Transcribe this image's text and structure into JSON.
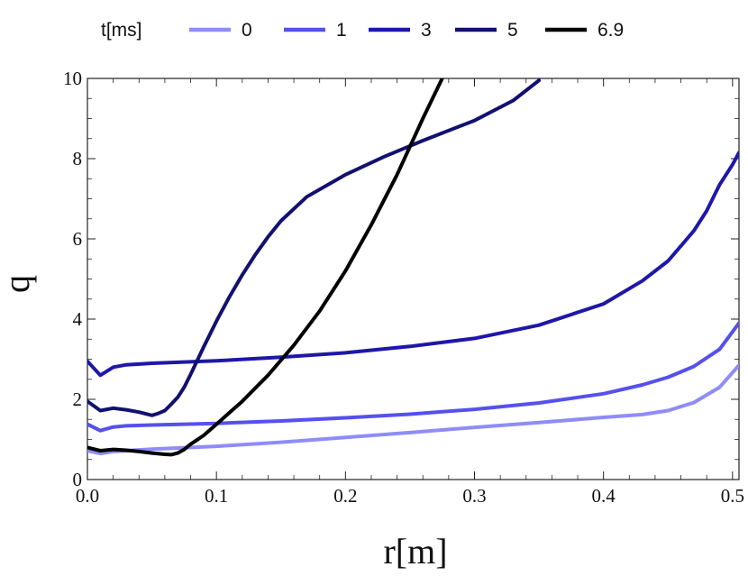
{
  "chart_data": {
    "type": "line",
    "title": "",
    "xlabel": "r[m]",
    "ylabel": "q",
    "xlim": [
      0,
      0.505
    ],
    "ylim": [
      0,
      10
    ],
    "xticks": [
      "0.0",
      "0.1",
      "0.2",
      "0.3",
      "0.4",
      "0.5"
    ],
    "yticks": [
      "0",
      "2",
      "4",
      "6",
      "8",
      "10"
    ],
    "legend_title": "t[ms]",
    "legend_position": "top",
    "series": [
      {
        "name": "0",
        "color": "#8f8cf8",
        "x": [
          0.0,
          0.01,
          0.02,
          0.05,
          0.1,
          0.15,
          0.2,
          0.25,
          0.3,
          0.35,
          0.4,
          0.43,
          0.45,
          0.47,
          0.49,
          0.505
        ],
        "y": [
          0.72,
          0.65,
          0.7,
          0.76,
          0.83,
          0.93,
          1.05,
          1.17,
          1.3,
          1.42,
          1.55,
          1.62,
          1.72,
          1.92,
          2.3,
          2.85
        ]
      },
      {
        "name": "1",
        "color": "#5550ee",
        "x": [
          0.0,
          0.01,
          0.02,
          0.03,
          0.05,
          0.1,
          0.15,
          0.2,
          0.25,
          0.3,
          0.35,
          0.4,
          0.43,
          0.45,
          0.47,
          0.49,
          0.505
        ],
        "y": [
          1.38,
          1.22,
          1.31,
          1.34,
          1.36,
          1.4,
          1.46,
          1.54,
          1.63,
          1.75,
          1.91,
          2.14,
          2.36,
          2.55,
          2.82,
          3.25,
          3.9
        ]
      },
      {
        "name": "3",
        "color": "#1e17a8",
        "x": [
          0.0,
          0.01,
          0.02,
          0.03,
          0.05,
          0.1,
          0.15,
          0.2,
          0.25,
          0.3,
          0.35,
          0.4,
          0.43,
          0.45,
          0.47,
          0.48,
          0.49,
          0.5,
          0.505
        ],
        "y": [
          2.95,
          2.6,
          2.8,
          2.86,
          2.9,
          2.96,
          3.05,
          3.16,
          3.32,
          3.52,
          3.85,
          4.38,
          4.95,
          5.45,
          6.2,
          6.7,
          7.35,
          7.85,
          8.15
        ]
      },
      {
        "name": "5",
        "color": "#121070",
        "x": [
          0.0,
          0.01,
          0.02,
          0.03,
          0.04,
          0.05,
          0.055,
          0.06,
          0.065,
          0.07,
          0.075,
          0.08,
          0.09,
          0.1,
          0.11,
          0.12,
          0.13,
          0.14,
          0.15,
          0.17,
          0.2,
          0.23,
          0.26,
          0.3,
          0.33,
          0.35
        ],
        "y": [
          1.95,
          1.72,
          1.78,
          1.74,
          1.68,
          1.6,
          1.65,
          1.72,
          1.88,
          2.05,
          2.3,
          2.62,
          3.3,
          3.95,
          4.55,
          5.1,
          5.6,
          6.05,
          6.45,
          7.05,
          7.6,
          8.05,
          8.45,
          8.95,
          9.45,
          9.95
        ]
      },
      {
        "name": "6.9",
        "color": "#000000",
        "x": [
          0.0,
          0.01,
          0.02,
          0.03,
          0.04,
          0.05,
          0.06,
          0.065,
          0.07,
          0.075,
          0.08,
          0.09,
          0.1,
          0.12,
          0.14,
          0.16,
          0.18,
          0.2,
          0.22,
          0.24,
          0.26,
          0.275
        ],
        "y": [
          0.8,
          0.72,
          0.75,
          0.73,
          0.7,
          0.66,
          0.63,
          0.62,
          0.66,
          0.75,
          0.88,
          1.1,
          1.38,
          1.95,
          2.6,
          3.35,
          4.2,
          5.2,
          6.35,
          7.6,
          9.0,
          10.0
        ]
      }
    ]
  }
}
